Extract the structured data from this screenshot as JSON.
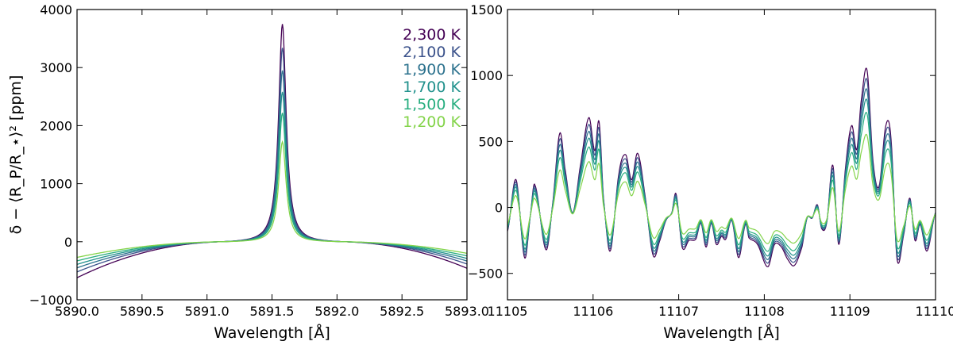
{
  "colors": {
    "2,300 K": "#440154",
    "2,100 K": "#3b528b",
    "1,900 K": "#2c728e",
    "1,700 K": "#21918c",
    "1,500 K": "#28ae80",
    "1,200 K": "#84d44b"
  },
  "chart_data": [
    {
      "type": "line",
      "xlabel": "Wavelength [Å]",
      "ylabel": "δ − ⟨R_P/R_⋆⟩² [ppm]",
      "xlim": [
        5890.0,
        5893.0
      ],
      "ylim": [
        -1000,
        4000
      ],
      "xticks": [
        "5890.0",
        "5890.5",
        "5891.0",
        "5891.5",
        "5892.0",
        "5892.5",
        "5893.0"
      ],
      "yticks": [
        "−1000",
        "0",
        "1000",
        "2000",
        "3000",
        "4000"
      ],
      "legend_position": "top-right",
      "line_center": 5891.58,
      "series": [
        {
          "name": "2,300 K",
          "peak": 3750,
          "wing_edge": -620,
          "crossing": 5891.1,
          "edge_x": 5890.0
        },
        {
          "name": "2,100 K",
          "peak": 3340,
          "wing_edge": -520,
          "crossing": 5891.1,
          "edge_x": 5890.0
        },
        {
          "name": "1,900 K",
          "peak": 2950,
          "wing_edge": -450,
          "crossing": 5891.1,
          "edge_x": 5890.0
        },
        {
          "name": "1,700 K",
          "peak": 2580,
          "wing_edge": -390,
          "crossing": 5891.1,
          "edge_x": 5890.0
        },
        {
          "name": "1,500 K",
          "peak": 2220,
          "wing_edge": -330,
          "crossing": 5891.1,
          "edge_x": 5890.0
        },
        {
          "name": "1,200 K",
          "peak": 1720,
          "wing_edge": -270,
          "crossing": 5891.1,
          "edge_x": 5890.0
        }
      ]
    },
    {
      "type": "line",
      "xlabel": "Wavelength [Å]",
      "ylabel": "",
      "xlim": [
        11105,
        11110
      ],
      "ylim": [
        -700,
        1500
      ],
      "xticks": [
        "11105",
        "11106",
        "11107",
        "11108",
        "11109",
        "11110"
      ],
      "yticks": [
        "−500",
        "0",
        "500",
        "1000",
        "1500"
      ],
      "series_names": [
        "2,300 K",
        "2,100 K",
        "1,900 K",
        "1,700 K",
        "1,500 K",
        "1,200 K"
      ],
      "amplitudes": [
        1.0,
        0.93,
        0.86,
        0.79,
        0.7,
        0.55
      ],
      "spectrum_x": [
        11105.0,
        11105.1,
        11105.2,
        11105.27,
        11105.32,
        11105.45,
        11105.53,
        11105.61,
        11105.67,
        11105.76,
        11105.85,
        11105.95,
        11106.02,
        11106.07,
        11106.12,
        11106.2,
        11106.3,
        11106.38,
        11106.45,
        11106.52,
        11106.6,
        11106.7,
        11106.78,
        11106.85,
        11106.92,
        11106.97,
        11107.04,
        11107.12,
        11107.2,
        11107.26,
        11107.32,
        11107.38,
        11107.44,
        11107.5,
        11107.55,
        11107.62,
        11107.7,
        11107.78,
        11107.82,
        11107.92,
        11108.04,
        11108.12,
        11108.2,
        11108.27,
        11108.35,
        11108.44,
        11108.5,
        11108.56,
        11108.62,
        11108.67,
        11108.73,
        11108.8,
        11108.87,
        11108.95,
        11109.02,
        11109.08,
        11109.13,
        11109.2,
        11109.27,
        11109.34,
        11109.42,
        11109.48,
        11109.55,
        11109.63,
        11109.7,
        11109.76,
        11109.82,
        11109.9,
        11110.0
      ],
      "spectrum_y": [
        -180,
        210,
        -380,
        -50,
        170,
        -320,
        40,
        560,
        300,
        -40,
        310,
        680,
        430,
        650,
        80,
        -330,
        250,
        400,
        210,
        410,
        120,
        -360,
        -250,
        -100,
        -40,
        100,
        -300,
        -250,
        -240,
        -120,
        -300,
        -120,
        -280,
        -220,
        -240,
        -100,
        -380,
        -130,
        -230,
        -280,
        -450,
        -280,
        -300,
        -390,
        -440,
        -300,
        -80,
        -80,
        20,
        -160,
        -110,
        320,
        -280,
        310,
        620,
        440,
        800,
        1040,
        350,
        160,
        620,
        520,
        -390,
        -200,
        70,
        -250,
        -130,
        -330,
        -40
      ]
    }
  ]
}
